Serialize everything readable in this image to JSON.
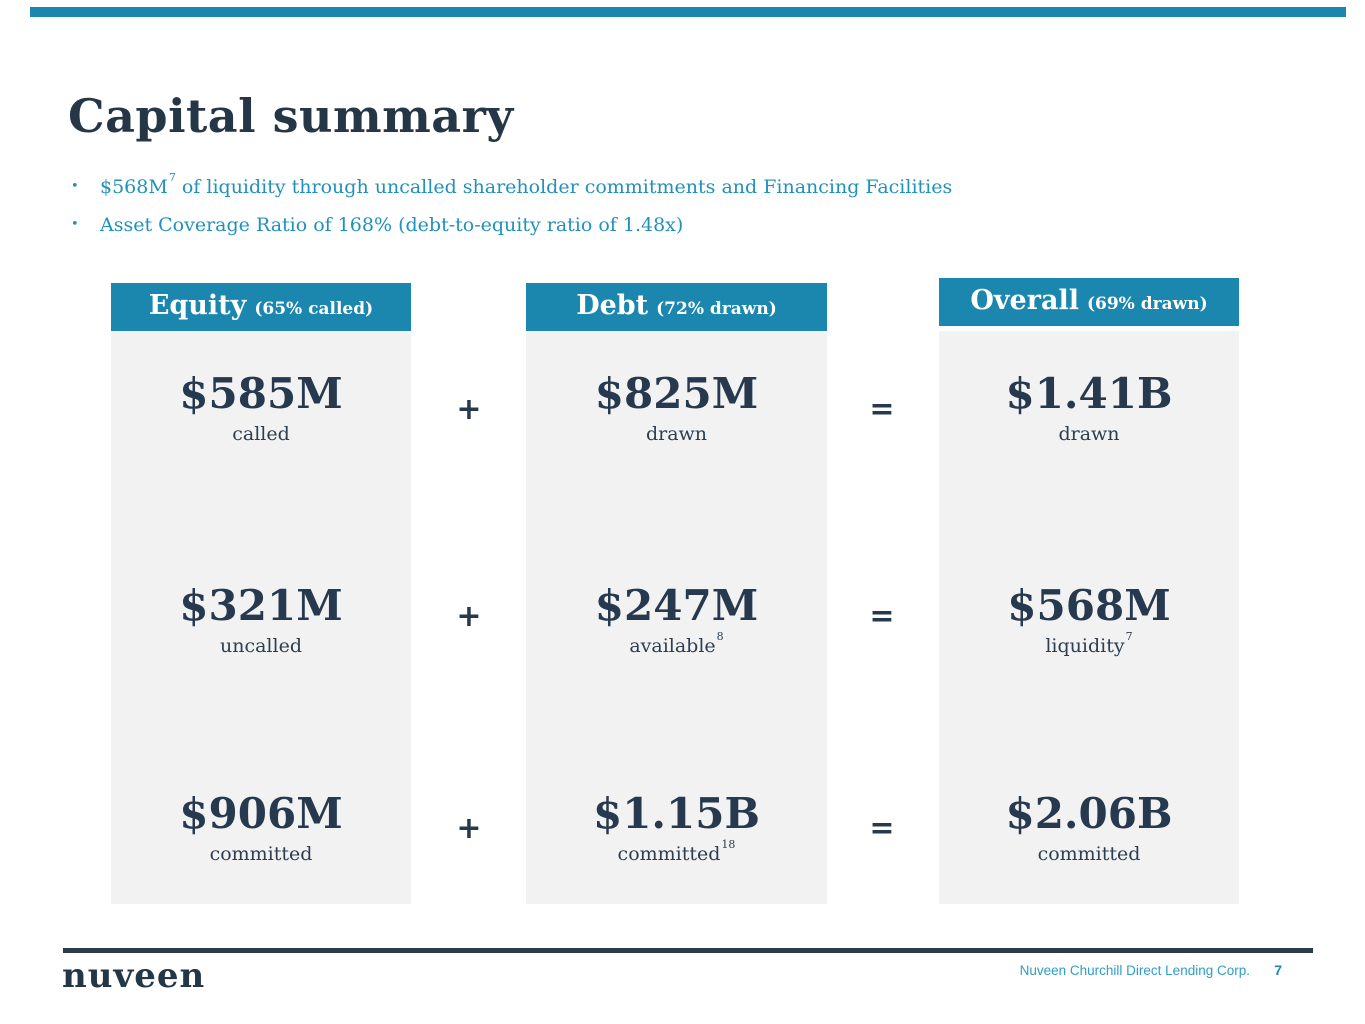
{
  "colors": {
    "accent_teal": "#1b87ae",
    "bullet_teal": "#2191bb",
    "navy": "#26394e",
    "column_body_gray": "#f2f2f2",
    "footer_text_teal": "#2f9ec6"
  },
  "title": "Capital summary",
  "bullet_glyph": "•",
  "bullets": {
    "first": {
      "lead": "$568M",
      "sup": "7",
      "rest": " of liquidity through uncalled shareholder commitments and Financing Facilities"
    },
    "second": "Asset Coverage Ratio of 168% (debt-to-equity ratio of 1.48x)"
  },
  "operators": {
    "plus": "+",
    "equals": "="
  },
  "columns": [
    {
      "header": {
        "name": "Equity",
        "qualifier": "(65% called)"
      },
      "rows": [
        {
          "value": "$585M",
          "label": "called"
        },
        {
          "value": "$321M",
          "label": "uncalled"
        },
        {
          "value": "$906M",
          "label": "committed"
        }
      ]
    },
    {
      "header": {
        "name": "Debt",
        "qualifier": "(72% drawn)"
      },
      "rows": [
        {
          "value": "$825M",
          "label": "drawn"
        },
        {
          "value": "$247M",
          "label": "available",
          "label_sup": "8"
        },
        {
          "value": "$1.15B",
          "label": "committed",
          "label_sup": "18"
        }
      ]
    },
    {
      "header": {
        "name": "Overall",
        "qualifier": "(69% drawn)"
      },
      "rows": [
        {
          "value": "$1.41B",
          "label": "drawn"
        },
        {
          "value": "$568M",
          "label": "liquidity",
          "label_sup": "7"
        },
        {
          "value": "$2.06B",
          "label": "committed"
        }
      ]
    }
  ],
  "footer": {
    "logo": "nuveen",
    "company": "Nuveen Churchill Direct Lending Corp.",
    "page": "7"
  }
}
